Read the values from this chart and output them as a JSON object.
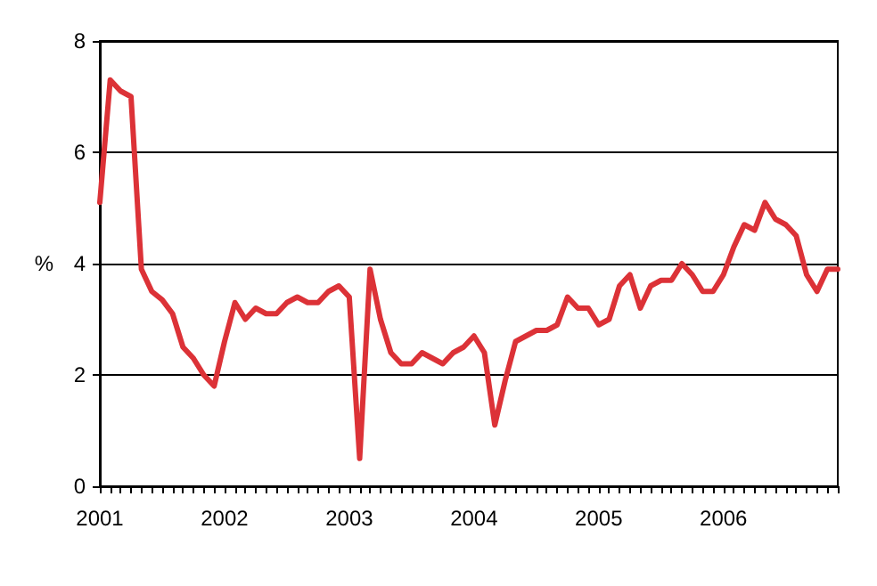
{
  "chart_data": {
    "type": "line",
    "ylabel": "%",
    "categories": [
      "2001",
      null,
      null,
      null,
      null,
      null,
      null,
      null,
      null,
      null,
      null,
      null,
      "2002",
      null,
      null,
      null,
      null,
      null,
      null,
      null,
      null,
      null,
      null,
      null,
      "2003",
      null,
      null,
      null,
      null,
      null,
      null,
      null,
      null,
      null,
      null,
      null,
      "2004",
      null,
      null,
      null,
      null,
      null,
      null,
      null,
      null,
      null,
      null,
      null,
      "2005",
      null,
      null,
      null,
      null,
      null,
      null,
      null,
      null,
      null,
      null,
      null,
      "2006",
      null,
      null,
      null,
      null,
      null,
      null,
      null,
      null,
      null,
      null,
      null
    ],
    "series": [
      {
        "color": "#dc3237",
        "values": [
          5.1,
          7.3,
          7.1,
          7.0,
          3.9,
          3.5,
          3.35,
          3.1,
          2.5,
          2.3,
          2.0,
          1.8,
          2.6,
          3.3,
          3.0,
          3.2,
          3.1,
          3.1,
          3.3,
          3.4,
          3.3,
          3.3,
          3.5,
          3.6,
          3.4,
          0.5,
          3.9,
          3.0,
          2.4,
          2.2,
          2.2,
          2.4,
          2.3,
          2.2,
          2.4,
          2.5,
          2.7,
          2.4,
          1.1,
          1.9,
          2.6,
          2.7,
          2.8,
          2.8,
          2.9,
          3.4,
          3.2,
          3.2,
          2.9,
          3.0,
          3.6,
          3.8,
          3.2,
          3.6,
          3.7,
          3.7,
          4.0,
          3.8,
          3.5,
          3.5,
          3.8,
          4.3,
          4.7,
          4.6,
          5.1,
          4.8,
          4.7,
          4.5,
          3.8,
          3.5,
          3.9,
          3.9
        ]
      }
    ],
    "ylim": [
      0,
      8
    ],
    "yticks": [
      0,
      2,
      4,
      6,
      8
    ],
    "grid": "y",
    "marker": "none",
    "line_style": "solid"
  }
}
